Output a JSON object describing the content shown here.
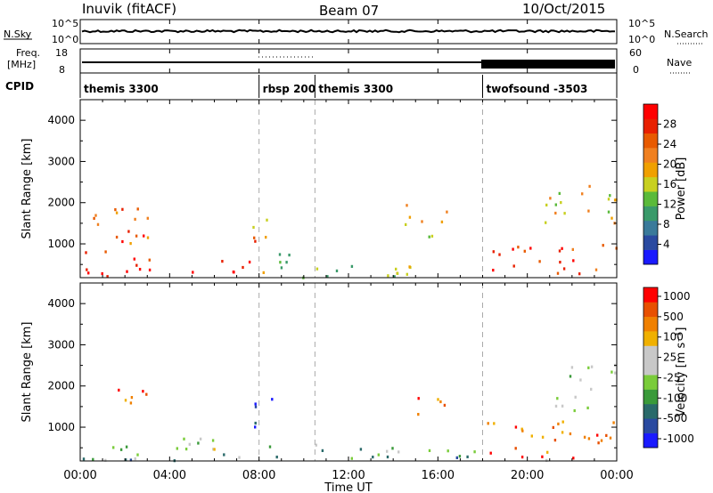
{
  "header": {
    "station": "Inuvik (fitACF)",
    "beam": "Beam 07",
    "date": "10/Oct/2015"
  },
  "noise_panel": {
    "left_label": "N.Sky",
    "right_label": "N.Search",
    "tick_top": "10^5",
    "tick_bottom": "10^0"
  },
  "freq_panel": {
    "left_label_1": "Freq.",
    "left_label_2": "[MHz]",
    "right_label": "Nave",
    "freq_ticks": [
      "18",
      "8"
    ],
    "nave_ticks": [
      "60",
      "0"
    ]
  },
  "cpid_panel": {
    "label": "CPID",
    "segments": [
      {
        "name": "themis 3300",
        "start_h": 0,
        "end_h": 8
      },
      {
        "name": "rbsp 200",
        "start_h": 8,
        "end_h": 10.5
      },
      {
        "name": "themis 3300",
        "start_h": 10.5,
        "end_h": 18
      },
      {
        "name": "twofsound -3503",
        "start_h": 18,
        "end_h": 24
      }
    ]
  },
  "x_axis": {
    "label": "Time UT",
    "ticks": [
      "00:00",
      "04:00",
      "08:00",
      "12:00",
      "16:00",
      "20:00",
      "00:00"
    ],
    "range_hours": [
      0,
      24
    ]
  },
  "power_panel": {
    "ylabel": "Slant Range [km]",
    "yticks": [
      "1000",
      "2000",
      "3000",
      "4000"
    ],
    "colorbar_label": "Power [dB]",
    "colorbar_ticks": [
      "4",
      "8",
      "12",
      "16",
      "20",
      "24",
      "28"
    ]
  },
  "velocity_panel": {
    "ylabel": "Slant Range [km]",
    "yticks": [
      "1000",
      "2000",
      "3000",
      "4000"
    ],
    "colorbar_label": "Velocity [m s⁻¹]",
    "colorbar_ticks": [
      "1000",
      "500",
      "100",
      "25",
      "-25",
      "-100",
      "-500",
      "-1000"
    ]
  },
  "colors": {
    "power_scale": [
      "#1a1aff",
      "#2a4aa0",
      "#3a7a9a",
      "#3a9a6a",
      "#5aba3a",
      "#c8d020",
      "#f0a000",
      "#f08020",
      "#e85a00",
      "#e82000",
      "#ff0000"
    ],
    "velocity_scale": [
      "#1a1aff",
      "#2a4aa0",
      "#2a6a6a",
      "#3a9a3a",
      "#7acc3a",
      "#c8c8c8",
      "#c8c8c8",
      "#f0b000",
      "#f08000",
      "#e85000",
      "#ff0000"
    ]
  },
  "chart_data": {
    "type": "heatmap",
    "time_range_hours": [
      0,
      24
    ],
    "range_km": [
      180,
      4500
    ],
    "power_blobs": [
      {
        "t0": 0.0,
        "t1": 7.6,
        "r0": 200,
        "r1": 700,
        "level": 0.95
      },
      {
        "t0": 0.2,
        "t1": 3.0,
        "r0": 700,
        "r1": 1900,
        "level": 0.75
      },
      {
        "t0": 1.0,
        "t1": 2.0,
        "r0": 800,
        "r1": 1500,
        "level": 0.95
      },
      {
        "t0": 7.6,
        "t1": 8.6,
        "r0": 1000,
        "r1": 1900,
        "level": 0.7
      },
      {
        "t0": 8.0,
        "t1": 10.5,
        "r0": 200,
        "r1": 800,
        "level": 0.45
      },
      {
        "t0": 10.5,
        "t1": 18.0,
        "r0": 200,
        "r1": 500,
        "level": 0.4
      },
      {
        "t0": 14.5,
        "t1": 16.5,
        "r0": 1200,
        "r1": 2000,
        "level": 0.6
      },
      {
        "t0": 18.0,
        "t1": 24.0,
        "r0": 300,
        "r1": 1000,
        "level": 0.85
      },
      {
        "t0": 20.5,
        "t1": 24.0,
        "r0": 1400,
        "r1": 2500,
        "level": 0.55
      }
    ],
    "velocity_blobs": [
      {
        "t0": 0.2,
        "t1": 3.0,
        "r0": 1400,
        "r1": 2000,
        "level": 0.85
      },
      {
        "t0": 0.0,
        "t1": 8.0,
        "r0": 200,
        "r1": 800,
        "level": 0.35
      },
      {
        "t0": 4.0,
        "t1": 6.0,
        "r0": 300,
        "r1": 800,
        "level": 0.55
      },
      {
        "t0": 7.6,
        "t1": 8.6,
        "r0": 1000,
        "r1": 1900,
        "level": 0.1
      },
      {
        "t0": 8.0,
        "t1": 18.0,
        "r0": 200,
        "r1": 600,
        "level": 0.35
      },
      {
        "t0": 15.0,
        "t1": 17.0,
        "r0": 1200,
        "r1": 1900,
        "level": 0.85
      },
      {
        "t0": 18.0,
        "t1": 24.0,
        "r0": 200,
        "r1": 1200,
        "level": 0.8
      },
      {
        "t0": 21.0,
        "t1": 24.0,
        "r0": 1400,
        "r1": 2600,
        "level": 0.5
      }
    ],
    "vertical_markers_hours": [
      8.0,
      10.5,
      18.0
    ]
  }
}
